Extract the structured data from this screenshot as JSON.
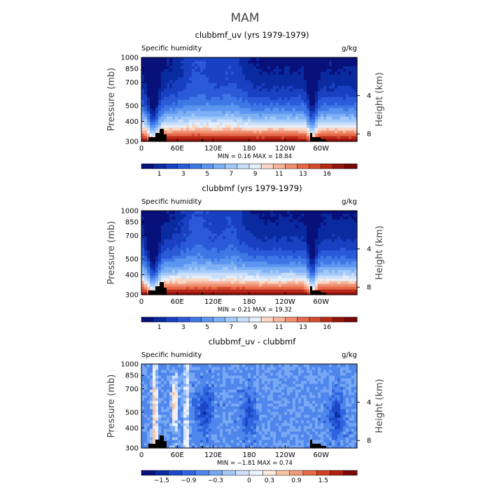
{
  "figure_title": "MAM",
  "colors": {
    "main_palette": [
      "#08107a",
      "#0a2aa0",
      "#1840c0",
      "#2a5ad8",
      "#3f78e6",
      "#5c95ef",
      "#7eb0f5",
      "#a3c9f9",
      "#c8defb",
      "#e6eefa",
      "#fad7c4",
      "#f6b49a",
      "#f08f70",
      "#e6694a",
      "#d44a2f",
      "#b82a16",
      "#96120c",
      "#760508"
    ],
    "diff_palette": [
      "#08107a",
      "#0a2aa0",
      "#1c48c8",
      "#2f64de",
      "#4f86ec",
      "#78a8f4",
      "#a5c8f9",
      "#cfe0fb",
      "#eef4fc",
      "#fde8de",
      "#f8c3a6",
      "#f29a78",
      "#e86a48",
      "#d43e24",
      "#b01e10",
      "#7c0608"
    ],
    "terrain": "#000000"
  },
  "chart_data": [
    {
      "type": "heatmap",
      "title": "clubbmf_uv (yrs 1979-1979)",
      "left_label": "Specific humidity",
      "units": "g/kg",
      "ylabel": "Pressure (mb)",
      "ylabel_right": "Height (km)",
      "x_ticks": [
        "0",
        "60E",
        "120E",
        "180",
        "120W",
        "60W"
      ],
      "y_ticks": [
        "300",
        "400",
        "500",
        "700",
        "850",
        "1000"
      ],
      "y_ticks_right": [
        "8",
        "4"
      ],
      "stats": "MIN =     0.16   MAX =    18.84",
      "colorbar_labels": [
        "1",
        "3",
        "5",
        "7",
        "9",
        "11",
        "13",
        "16"
      ],
      "colorbar_levels": [
        0.5,
        1,
        2,
        3,
        4,
        5,
        6,
        7,
        8,
        9,
        10,
        11,
        12,
        13,
        14,
        15,
        16,
        18
      ],
      "ylim": [
        1000,
        300
      ],
      "zlim": [
        0.16,
        18.84
      ]
    },
    {
      "type": "heatmap",
      "title": "clubbmf (yrs 1979-1979)",
      "left_label": "Specific humidity",
      "units": "g/kg",
      "ylabel": "Pressure (mb)",
      "ylabel_right": "Height (km)",
      "x_ticks": [
        "0",
        "60E",
        "120E",
        "180",
        "120W",
        "60W"
      ],
      "y_ticks": [
        "300",
        "400",
        "500",
        "700",
        "850",
        "1000"
      ],
      "y_ticks_right": [
        "8",
        "4"
      ],
      "stats": "MIN =     0.21   MAX =    19.32",
      "colorbar_labels": [
        "1",
        "3",
        "5",
        "7",
        "9",
        "11",
        "13",
        "16"
      ],
      "colorbar_levels": [
        0.5,
        1,
        2,
        3,
        4,
        5,
        6,
        7,
        8,
        9,
        10,
        11,
        12,
        13,
        14,
        15,
        16,
        18
      ],
      "ylim": [
        1000,
        300
      ],
      "zlim": [
        0.21,
        19.32
      ]
    },
    {
      "type": "heatmap",
      "title": "clubbmf_uv - clubbmf",
      "left_label": "Specific humidity",
      "units": "g/kg",
      "ylabel": "Pressure (mb)",
      "ylabel_right": "Height (km)",
      "x_ticks": [
        "0",
        "60E",
        "120E",
        "180",
        "120W",
        "60W"
      ],
      "y_ticks": [
        "300",
        "400",
        "500",
        "700",
        "850",
        "1000"
      ],
      "y_ticks_right": [
        "8",
        "4"
      ],
      "stats": "MIN =    −1.81   MAX =     0.74",
      "colorbar_labels": [
        "−1.5",
        "−0.9",
        "−0.3",
        "0",
        "0.3",
        "0.9",
        "1.5"
      ],
      "colorbar_levels": [
        -1.8,
        -1.5,
        -1.2,
        -0.9,
        -0.6,
        -0.3,
        -0.1,
        0,
        0.1,
        0.3,
        0.6,
        0.9,
        1.2,
        1.5,
        1.8
      ],
      "ylim": [
        1000,
        300
      ],
      "zlim": [
        -1.81,
        0.74
      ]
    }
  ]
}
